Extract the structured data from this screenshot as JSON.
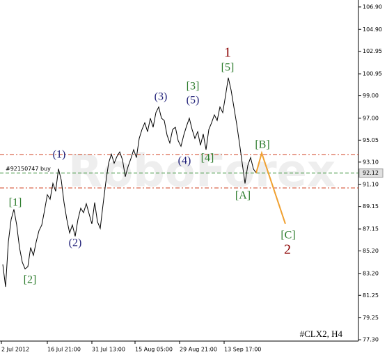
{
  "chart_data": {
    "type": "line",
    "symbol": "#CLX2, H4",
    "watermark": "RoboForex",
    "ylim": [
      77.18,
      107.33
    ],
    "yticks": [
      {
        "value": 106.9,
        "label": "106.90"
      },
      {
        "value": 104.9,
        "label": "104.90"
      },
      102.95,
      100.95,
      {
        "value": 99.0,
        "label": "99.00"
      },
      {
        "value": 97.0,
        "label": "97.00"
      },
      95.05,
      {
        "value": 93.1,
        "label": "93.10"
      },
      {
        "value": 91.1,
        "label": "91.10"
      },
      89.15,
      87.15,
      {
        "value": 85.2,
        "label": "85.20"
      },
      {
        "value": 83.2,
        "label": "83.20"
      },
      81.25,
      79.25,
      {
        "value": 77.3,
        "label": "77.30"
      }
    ],
    "xlim": [
      -1,
      127.75
    ],
    "xticks": [
      {
        "value": -0.5,
        "label": "2 Jul 2012"
      },
      {
        "value": 16,
        "label": "16 Jul 21:00"
      },
      {
        "value": 32,
        "label": "31 Jul 13:00"
      },
      {
        "value": 47.5,
        "label": "15 Aug 05:00"
      },
      {
        "value": 63.5,
        "label": "29 Aug 21:00"
      },
      {
        "value": 79.5,
        "label": "13 Sep 17:00"
      }
    ],
    "series": [
      {
        "color": "#000000",
        "values": [
          84.0,
          82.0,
          86.0,
          88.0,
          88.9,
          87.5,
          85.5,
          84.2,
          83.6,
          83.8,
          85.5,
          84.8,
          86.0,
          87.0,
          87.5,
          88.8,
          90.2,
          89.8,
          91.2,
          90.5,
          92.5,
          91.5,
          89.5,
          88.0,
          86.8,
          87.5,
          86.5,
          88.0,
          89.0,
          88.6,
          89.4,
          88.5,
          87.6,
          89.5,
          87.8,
          87.2,
          89.3,
          91.3,
          93.0,
          93.8,
          93.0,
          93.6,
          94.0,
          93.3,
          91.8,
          92.7,
          93.4,
          94.2,
          93.5,
          95.2,
          96.0,
          96.6,
          95.8,
          97.0,
          96.2,
          97.5,
          98.0,
          97.0,
          96.8,
          95.5,
          94.8,
          96.0,
          96.2,
          95.0,
          94.5,
          95.5,
          96.3,
          97.0,
          96.0,
          95.2,
          95.8,
          94.6,
          95.6,
          94.2,
          96.0,
          96.6,
          97.3,
          96.8,
          98.0,
          97.5,
          99.0,
          100.6,
          99.5,
          98.0,
          96.5,
          94.8,
          93.0,
          91.2,
          92.8,
          93.5,
          92.5,
          92.12
        ]
      },
      {
        "color": "#f0a030",
        "x": [
          91,
          93,
          101.5
        ],
        "values": [
          92.12,
          93.9,
          87.6
        ]
      }
    ],
    "hlines": [
      {
        "value": 93.77,
        "color": "#d04020",
        "dash": "6 3 2 3"
      },
      {
        "value": 90.8,
        "color": "#d04020",
        "dash": "6 3 2 3"
      },
      {
        "value": 92.12,
        "color": "#2a8a2a",
        "dash": "5 3",
        "label": "#92150747 buy"
      }
    ],
    "annotations": [
      {
        "text": "1",
        "color": "#8b0000"
      },
      {
        "text": "[5]",
        "color": "#2a7a2a"
      },
      {
        "text": "[3]",
        "color": "#2a7a2a"
      },
      {
        "text": "(5)",
        "color": "#23237a"
      },
      {
        "text": "(3)",
        "color": "#23237a"
      },
      {
        "text": "(4)",
        "color": "#23237a"
      },
      {
        "text": "[4]",
        "color": "#2a7a2a"
      },
      {
        "text": "[B]",
        "color": "#2a7a2a"
      },
      {
        "text": "[A]",
        "color": "#2a7a2a"
      },
      {
        "text": "(1)",
        "color": "#23237a"
      },
      {
        "text": "(2)",
        "color": "#23237a"
      },
      {
        "text": "[1]",
        "color": "#2a7a2a"
      },
      {
        "text": "[2]",
        "color": "#2a7a2a"
      },
      {
        "text": "[C]",
        "color": "#2a7a2a"
      },
      {
        "text": "2",
        "color": "#8b0000"
      }
    ]
  }
}
